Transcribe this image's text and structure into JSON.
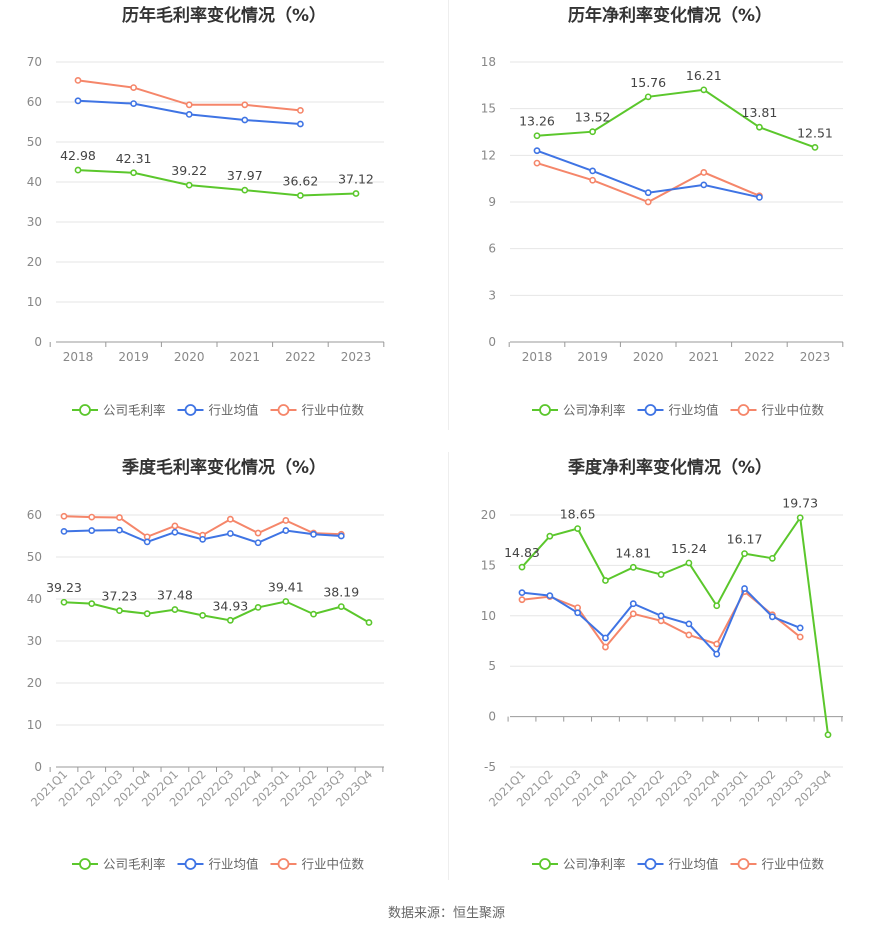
{
  "colors": {
    "company": "#5bc72c",
    "industry_avg": "#3f74e4",
    "industry_median": "#f5866a"
  },
  "legend": {
    "gross": [
      "公司毛利率",
      "行业均值",
      "行业中位数"
    ],
    "net": [
      "公司净利率",
      "行业均值",
      "行业中位数"
    ]
  },
  "source": "数据来源：恒生聚源",
  "chart_data": [
    {
      "type": "line",
      "title": "历年毛利率变化情况（%）",
      "categories": [
        "2018",
        "2019",
        "2020",
        "2021",
        "2022",
        "2023"
      ],
      "ylim": [
        0,
        70
      ],
      "yticks": [
        0,
        10,
        20,
        30,
        40,
        50,
        60,
        70
      ],
      "grid": true,
      "legend_position": "bottom",
      "series": [
        {
          "name": "公司毛利率",
          "values": [
            42.98,
            42.31,
            39.22,
            37.97,
            36.62,
            37.12
          ]
        },
        {
          "name": "行业均值",
          "values": [
            60.3,
            59.6,
            56.9,
            55.5,
            54.5,
            null
          ]
        },
        {
          "name": "行业中位数",
          "values": [
            65.4,
            63.6,
            59.3,
            59.3,
            57.9,
            null
          ]
        }
      ],
      "data_labels": [
        "42.98",
        "42.31",
        "39.22",
        "37.97",
        "36.62",
        "37.12"
      ],
      "label_every": 1
    },
    {
      "type": "line",
      "title": "历年净利率变化情况（%）",
      "categories": [
        "2018",
        "2019",
        "2020",
        "2021",
        "2022",
        "2023"
      ],
      "ylim": [
        0,
        18
      ],
      "yticks": [
        0,
        3,
        6,
        9,
        12,
        15,
        18
      ],
      "grid": true,
      "legend_position": "bottom",
      "series": [
        {
          "name": "公司净利率",
          "values": [
            13.26,
            13.52,
            15.76,
            16.21,
            13.81,
            12.51
          ]
        },
        {
          "name": "行业均值",
          "values": [
            12.3,
            11.0,
            9.6,
            10.1,
            9.3,
            null
          ]
        },
        {
          "name": "行业中位数",
          "values": [
            11.5,
            10.4,
            9.0,
            10.9,
            9.4,
            null
          ]
        }
      ],
      "data_labels": [
        "13.26",
        "13.52",
        "15.76",
        "16.21",
        "13.81",
        "12.51"
      ],
      "label_every": 1
    },
    {
      "type": "line",
      "title": "季度毛利率变化情况（%）",
      "categories": [
        "2021Q1",
        "2021Q2",
        "2021Q3",
        "2021Q4",
        "2022Q1",
        "2022Q2",
        "2022Q3",
        "2022Q4",
        "2023Q1",
        "2023Q2",
        "2023Q3",
        "2023Q4"
      ],
      "ylim": [
        0,
        60
      ],
      "yticks": [
        0,
        10,
        20,
        30,
        40,
        50,
        60
      ],
      "grid": true,
      "legend_position": "bottom",
      "series": [
        {
          "name": "公司毛利率",
          "values": [
            39.23,
            38.9,
            37.23,
            36.5,
            37.48,
            36.1,
            34.93,
            38.0,
            39.41,
            36.4,
            38.19,
            34.4
          ]
        },
        {
          "name": "行业均值",
          "values": [
            56.1,
            56.3,
            56.4,
            53.6,
            55.9,
            54.2,
            55.6,
            53.4,
            56.3,
            55.4,
            55.0,
            null
          ]
        },
        {
          "name": "行业中位数",
          "values": [
            59.7,
            59.5,
            59.4,
            54.8,
            57.4,
            55.2,
            59.0,
            55.7,
            58.7,
            55.7,
            55.4,
            null
          ]
        }
      ],
      "data_labels": [
        "39.23",
        "",
        "37.23",
        "",
        "37.48",
        "",
        "34.93",
        "",
        "39.41",
        "",
        "38.19",
        ""
      ],
      "label_every": 2
    },
    {
      "type": "line",
      "title": "季度净利率变化情况（%）",
      "categories": [
        "2021Q1",
        "2021Q2",
        "2021Q3",
        "2021Q4",
        "2022Q1",
        "2022Q2",
        "2022Q3",
        "2022Q4",
        "2023Q1",
        "2023Q2",
        "2023Q3",
        "2023Q4"
      ],
      "ylim": [
        -5,
        20
      ],
      "yticks": [
        -5,
        0,
        5,
        10,
        15,
        20
      ],
      "grid": true,
      "legend_position": "bottom",
      "series": [
        {
          "name": "公司净利率",
          "values": [
            14.83,
            17.9,
            18.65,
            13.5,
            14.81,
            14.1,
            15.24,
            11.0,
            16.17,
            15.7,
            19.73,
            -1.8
          ]
        },
        {
          "name": "行业均值",
          "values": [
            12.3,
            12.0,
            10.3,
            7.8,
            11.2,
            10.0,
            9.2,
            6.2,
            12.7,
            9.9,
            8.8,
            null
          ]
        },
        {
          "name": "行业中位数",
          "values": [
            11.6,
            11.9,
            10.8,
            6.9,
            10.2,
            9.5,
            8.1,
            7.2,
            12.4,
            10.1,
            7.9,
            null
          ]
        }
      ],
      "data_labels": [
        "14.83",
        "",
        "18.65",
        "",
        "14.81",
        "",
        "15.24",
        "",
        "16.17",
        "",
        "19.73",
        ""
      ],
      "label_every": 2
    }
  ]
}
